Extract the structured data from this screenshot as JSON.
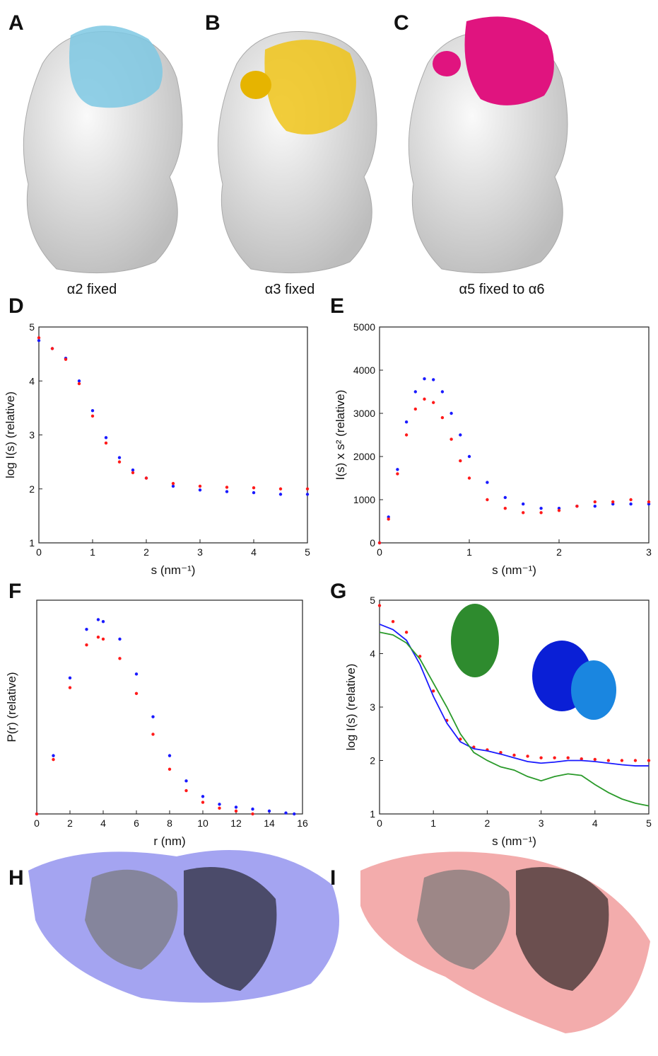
{
  "panels": [
    "A",
    "B",
    "C",
    "H",
    "I"
  ],
  "captions": [
    "α2 fixed",
    "α3 fixed",
    "α5 fixed to α6"
  ],
  "chart_data": [
    {
      "type": "scatter",
      "panel_label": "D",
      "x_label": "s (nm⁻¹)",
      "y_label": "log I(s) (relative)",
      "x": [
        0,
        0.25,
        0.5,
        0.75,
        1,
        1.25,
        1.5,
        1.75,
        2,
        2.5,
        3,
        3.5,
        4,
        4.5,
        5
      ],
      "series": [
        {
          "color": "#1a1aff",
          "values": [
            4.75,
            4.6,
            4.42,
            4.0,
            3.45,
            2.95,
            2.58,
            2.35,
            2.2,
            2.05,
            1.98,
            1.95,
            1.93,
            1.9,
            1.9
          ]
        },
        {
          "color": "#ff1a1a",
          "values": [
            4.8,
            4.6,
            4.4,
            3.95,
            3.35,
            2.85,
            2.5,
            2.3,
            2.2,
            2.1,
            2.05,
            2.03,
            2.02,
            2.0,
            2.0
          ]
        }
      ],
      "xlim": [
        0,
        5
      ],
      "ylim": [
        1,
        5
      ],
      "xticks": [
        0,
        1,
        2,
        3,
        4,
        5
      ],
      "yticks": [
        1,
        2,
        3,
        4,
        5
      ]
    },
    {
      "type": "scatter",
      "panel_label": "E",
      "x_label": "s (nm⁻¹)",
      "y_label": "I(s) x s² (relative)",
      "x": [
        0,
        0.1,
        0.2,
        0.3,
        0.4,
        0.5,
        0.6,
        0.7,
        0.8,
        0.9,
        1.0,
        1.2,
        1.4,
        1.6,
        1.8,
        2.0,
        2.2,
        2.4,
        2.6,
        2.8,
        3.0
      ],
      "series": [
        {
          "color": "#1a1aff",
          "values": [
            0,
            600,
            1700,
            2800,
            3500,
            3800,
            3780,
            3500,
            3000,
            2500,
            2000,
            1400,
            1050,
            900,
            800,
            800,
            850,
            850,
            900,
            900,
            900
          ]
        },
        {
          "color": "#ff1a1a",
          "values": [
            0,
            550,
            1600,
            2500,
            3100,
            3330,
            3250,
            2900,
            2400,
            1900,
            1500,
            1000,
            800,
            700,
            700,
            750,
            850,
            950,
            950,
            1000,
            950
          ]
        }
      ],
      "xlim": [
        0,
        3
      ],
      "ylim": [
        0,
        5000
      ],
      "xticks": [
        0,
        1,
        2,
        3
      ],
      "yticks": [
        0,
        1000,
        2000,
        3000,
        4000,
        5000
      ]
    },
    {
      "type": "scatter",
      "panel_label": "F",
      "x_label": "r (nm)",
      "y_label": "P(r) (relative)",
      "x": [
        0,
        1,
        2,
        3,
        3.7,
        4,
        5,
        6,
        7,
        8,
        9,
        10,
        11,
        12,
        13,
        14,
        15,
        15.5
      ],
      "series": [
        {
          "color": "#1a1aff",
          "values": [
            0,
            0.3,
            0.7,
            0.95,
            1.0,
            0.99,
            0.9,
            0.72,
            0.5,
            0.3,
            0.17,
            0.09,
            0.05,
            0.035,
            0.025,
            0.015,
            0.005,
            0
          ]
        },
        {
          "color": "#ff1a1a",
          "values": [
            0,
            0.28,
            0.65,
            0.87,
            0.91,
            0.9,
            0.8,
            0.62,
            0.41,
            0.23,
            0.12,
            0.06,
            0.03,
            0.015,
            0,
            null,
            null,
            null
          ]
        }
      ],
      "xlim": [
        0,
        16
      ],
      "ylim": [
        0,
        1.1
      ],
      "xticks": [
        0,
        2,
        4,
        6,
        8,
        10,
        12,
        14,
        16
      ]
    },
    {
      "type": "line",
      "panel_label": "G",
      "x_label": "s (nm⁻¹)",
      "y_label": "log I(s) (relative)",
      "x": [
        0,
        0.25,
        0.5,
        0.75,
        1,
        1.25,
        1.5,
        1.75,
        2,
        2.25,
        2.5,
        2.75,
        3,
        3.25,
        3.5,
        3.75,
        4,
        4.25,
        4.5,
        4.75,
        5
      ],
      "series": [
        {
          "color": "#ff1a1a",
          "mode": "markers",
          "values": [
            4.9,
            4.6,
            4.4,
            3.95,
            3.3,
            2.75,
            2.4,
            2.25,
            2.2,
            2.15,
            2.1,
            2.08,
            2.05,
            2.05,
            2.05,
            2.03,
            2.02,
            2.0,
            2.0,
            2.0,
            2.0
          ]
        },
        {
          "color": "#1a1aff",
          "mode": "line",
          "values": [
            4.55,
            4.45,
            4.25,
            3.8,
            3.2,
            2.7,
            2.35,
            2.22,
            2.18,
            2.12,
            2.05,
            1.98,
            1.95,
            1.97,
            2.0,
            2.0,
            1.98,
            1.95,
            1.92,
            1.9,
            1.9
          ]
        },
        {
          "color": "#2a9a2a",
          "mode": "line",
          "values": [
            4.4,
            4.35,
            4.2,
            3.9,
            3.45,
            3.0,
            2.5,
            2.15,
            2.0,
            1.88,
            1.82,
            1.7,
            1.62,
            1.7,
            1.75,
            1.72,
            1.55,
            1.4,
            1.28,
            1.2,
            1.15
          ]
        }
      ],
      "xlim": [
        0,
        5
      ],
      "ylim": [
        1,
        5
      ],
      "xticks": [
        0,
        1,
        2,
        3,
        4,
        5
      ],
      "yticks": [
        1,
        2,
        3,
        4,
        5
      ]
    }
  ]
}
